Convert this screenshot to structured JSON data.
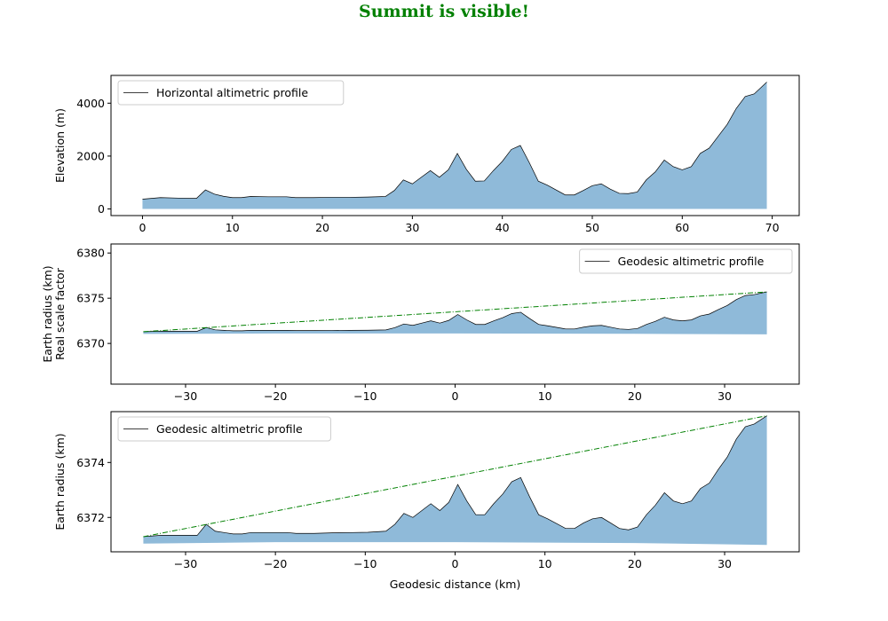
{
  "figure": {
    "title": "Summit is visible!",
    "title_color": "#008000"
  },
  "chart_data": [
    {
      "type": "area",
      "legend": "Horizontal altimetric profile",
      "legend_position": "upper-left",
      "ylabel": "Elevation (m)",
      "xlabel": "",
      "xlim": [
        -3.5,
        73
      ],
      "ylim": [
        -250,
        5050
      ],
      "xticks": [
        0,
        10,
        20,
        30,
        40,
        50,
        60,
        70
      ],
      "yticks": [
        0,
        2000,
        4000
      ],
      "fill_color": "#8fbad9",
      "line_color": "#000000",
      "x": [
        0,
        2,
        4,
        6,
        7,
        8,
        9,
        10,
        11,
        12,
        14,
        16,
        17,
        19,
        21,
        23,
        25,
        27,
        28,
        29,
        30,
        31,
        32,
        33,
        34,
        35,
        36,
        37,
        38,
        39,
        40,
        41,
        42,
        43,
        44,
        45,
        47,
        48,
        49,
        50,
        51,
        52,
        53,
        54,
        55,
        56,
        57,
        58,
        59,
        60,
        61,
        62,
        63,
        64,
        65,
        66,
        67,
        68,
        69.4
      ],
      "y": [
        370,
        430,
        410,
        400,
        720,
        560,
        480,
        430,
        430,
        470,
        460,
        460,
        430,
        430,
        440,
        440,
        450,
        470,
        700,
        1100,
        950,
        1200,
        1450,
        1200,
        1480,
        2100,
        1500,
        1050,
        1060,
        1450,
        1800,
        2250,
        2400,
        1750,
        1050,
        900,
        530,
        530,
        700,
        880,
        950,
        750,
        590,
        580,
        640,
        1100,
        1400,
        1850,
        1600,
        1480,
        1600,
        2100,
        2300,
        2750,
        3200,
        3800,
        4250,
        4350,
        4800
      ]
    },
    {
      "type": "area",
      "legend": "Geodesic altimetric profile",
      "legend_position": "upper-right",
      "ylabel": "Earth radius (km)\nReal scale factor",
      "xlabel": "",
      "xlim": [
        -38.3,
        38.3
      ],
      "ylim": [
        6365.5,
        6381
      ],
      "xticks": [
        -30,
        -20,
        -10,
        0,
        10,
        20,
        30
      ],
      "yticks": [
        6370,
        6375,
        6380
      ],
      "fill_color": "#8fbad9",
      "line_color": "#000000",
      "sightline_color": "#008000",
      "sightline": {
        "x": [
          -34.7,
          34.7
        ],
        "y": [
          6371.3,
          6375.7
        ]
      },
      "baseline": {
        "x": [
          -34.7,
          -20,
          0,
          20,
          34.7
        ],
        "y": [
          6371.05,
          6371.1,
          6371.1,
          6371.07,
          6371.0
        ]
      },
      "x": [
        -34.7,
        -32.7,
        -30.7,
        -28.7,
        -27.7,
        -26.7,
        -25.7,
        -24.7,
        -23.7,
        -22.7,
        -20.7,
        -18.7,
        -17.7,
        -15.7,
        -13.7,
        -11.7,
        -9.7,
        -7.7,
        -6.7,
        -5.7,
        -4.7,
        -3.7,
        -2.7,
        -1.7,
        -0.7,
        0.3,
        1.3,
        2.3,
        3.3,
        4.3,
        5.3,
        6.3,
        7.3,
        8.3,
        9.3,
        10.3,
        12.3,
        13.3,
        14.3,
        15.3,
        16.3,
        17.3,
        18.3,
        19.3,
        20.3,
        21.3,
        22.3,
        23.3,
        24.3,
        25.3,
        26.3,
        27.3,
        28.3,
        29.3,
        30.3,
        31.3,
        32.3,
        33.3,
        34.7
      ],
      "y": [
        6371.3,
        6371.35,
        6371.35,
        6371.35,
        6371.75,
        6371.5,
        6371.45,
        6371.4,
        6371.4,
        6371.45,
        6371.45,
        6371.45,
        6371.42,
        6371.42,
        6371.44,
        6371.45,
        6371.46,
        6371.5,
        6371.75,
        6372.15,
        6372.0,
        6372.25,
        6372.5,
        6372.25,
        6372.55,
        6373.2,
        6372.6,
        6372.1,
        6372.1,
        6372.5,
        6372.85,
        6373.3,
        6373.45,
        6372.75,
        6372.1,
        6371.95,
        6371.6,
        6371.6,
        6371.8,
        6371.95,
        6372.0,
        6371.8,
        6371.6,
        6371.55,
        6371.65,
        6372.1,
        6372.45,
        6372.9,
        6372.6,
        6372.5,
        6372.6,
        6373.05,
        6373.25,
        6373.75,
        6374.2,
        6374.85,
        6375.3,
        6375.4,
        6375.7
      ]
    },
    {
      "type": "area",
      "legend": "Geodesic altimetric profile",
      "legend_position": "upper-left",
      "ylabel": "Earth radius (km)",
      "xlabel": "Geodesic distance (km)",
      "xlim": [
        -38.3,
        38.3
      ],
      "ylim": [
        6370.75,
        6375.85
      ],
      "xticks": [
        -30,
        -20,
        -10,
        0,
        10,
        20,
        30
      ],
      "yticks": [
        6372,
        6374
      ],
      "fill_color": "#8fbad9",
      "line_color": "#000000",
      "sightline_color": "#008000",
      "sightline": {
        "x": [
          -34.7,
          34.7
        ],
        "y": [
          6371.3,
          6375.7
        ]
      },
      "baseline": {
        "x": [
          -34.7,
          -20,
          0,
          20,
          34.7
        ],
        "y": [
          6371.05,
          6371.1,
          6371.1,
          6371.07,
          6371.0
        ]
      },
      "x": [
        -34.7,
        -32.7,
        -30.7,
        -28.7,
        -27.7,
        -26.7,
        -25.7,
        -24.7,
        -23.7,
        -22.7,
        -20.7,
        -18.7,
        -17.7,
        -15.7,
        -13.7,
        -11.7,
        -9.7,
        -7.7,
        -6.7,
        -5.7,
        -4.7,
        -3.7,
        -2.7,
        -1.7,
        -0.7,
        0.3,
        1.3,
        2.3,
        3.3,
        4.3,
        5.3,
        6.3,
        7.3,
        8.3,
        9.3,
        10.3,
        12.3,
        13.3,
        14.3,
        15.3,
        16.3,
        17.3,
        18.3,
        19.3,
        20.3,
        21.3,
        22.3,
        23.3,
        24.3,
        25.3,
        26.3,
        27.3,
        28.3,
        29.3,
        30.3,
        31.3,
        32.3,
        33.3,
        34.7
      ],
      "y": [
        6371.3,
        6371.35,
        6371.35,
        6371.35,
        6371.75,
        6371.5,
        6371.45,
        6371.4,
        6371.4,
        6371.45,
        6371.45,
        6371.45,
        6371.42,
        6371.42,
        6371.44,
        6371.45,
        6371.46,
        6371.5,
        6371.75,
        6372.15,
        6372.0,
        6372.25,
        6372.5,
        6372.25,
        6372.55,
        6373.2,
        6372.6,
        6372.1,
        6372.1,
        6372.5,
        6372.85,
        6373.3,
        6373.45,
        6372.75,
        6372.1,
        6371.95,
        6371.6,
        6371.6,
        6371.8,
        6371.95,
        6372.0,
        6371.8,
        6371.6,
        6371.55,
        6371.65,
        6372.1,
        6372.45,
        6372.9,
        6372.6,
        6372.5,
        6372.6,
        6373.05,
        6373.25,
        6373.75,
        6374.2,
        6374.85,
        6375.3,
        6375.4,
        6375.7
      ]
    }
  ]
}
